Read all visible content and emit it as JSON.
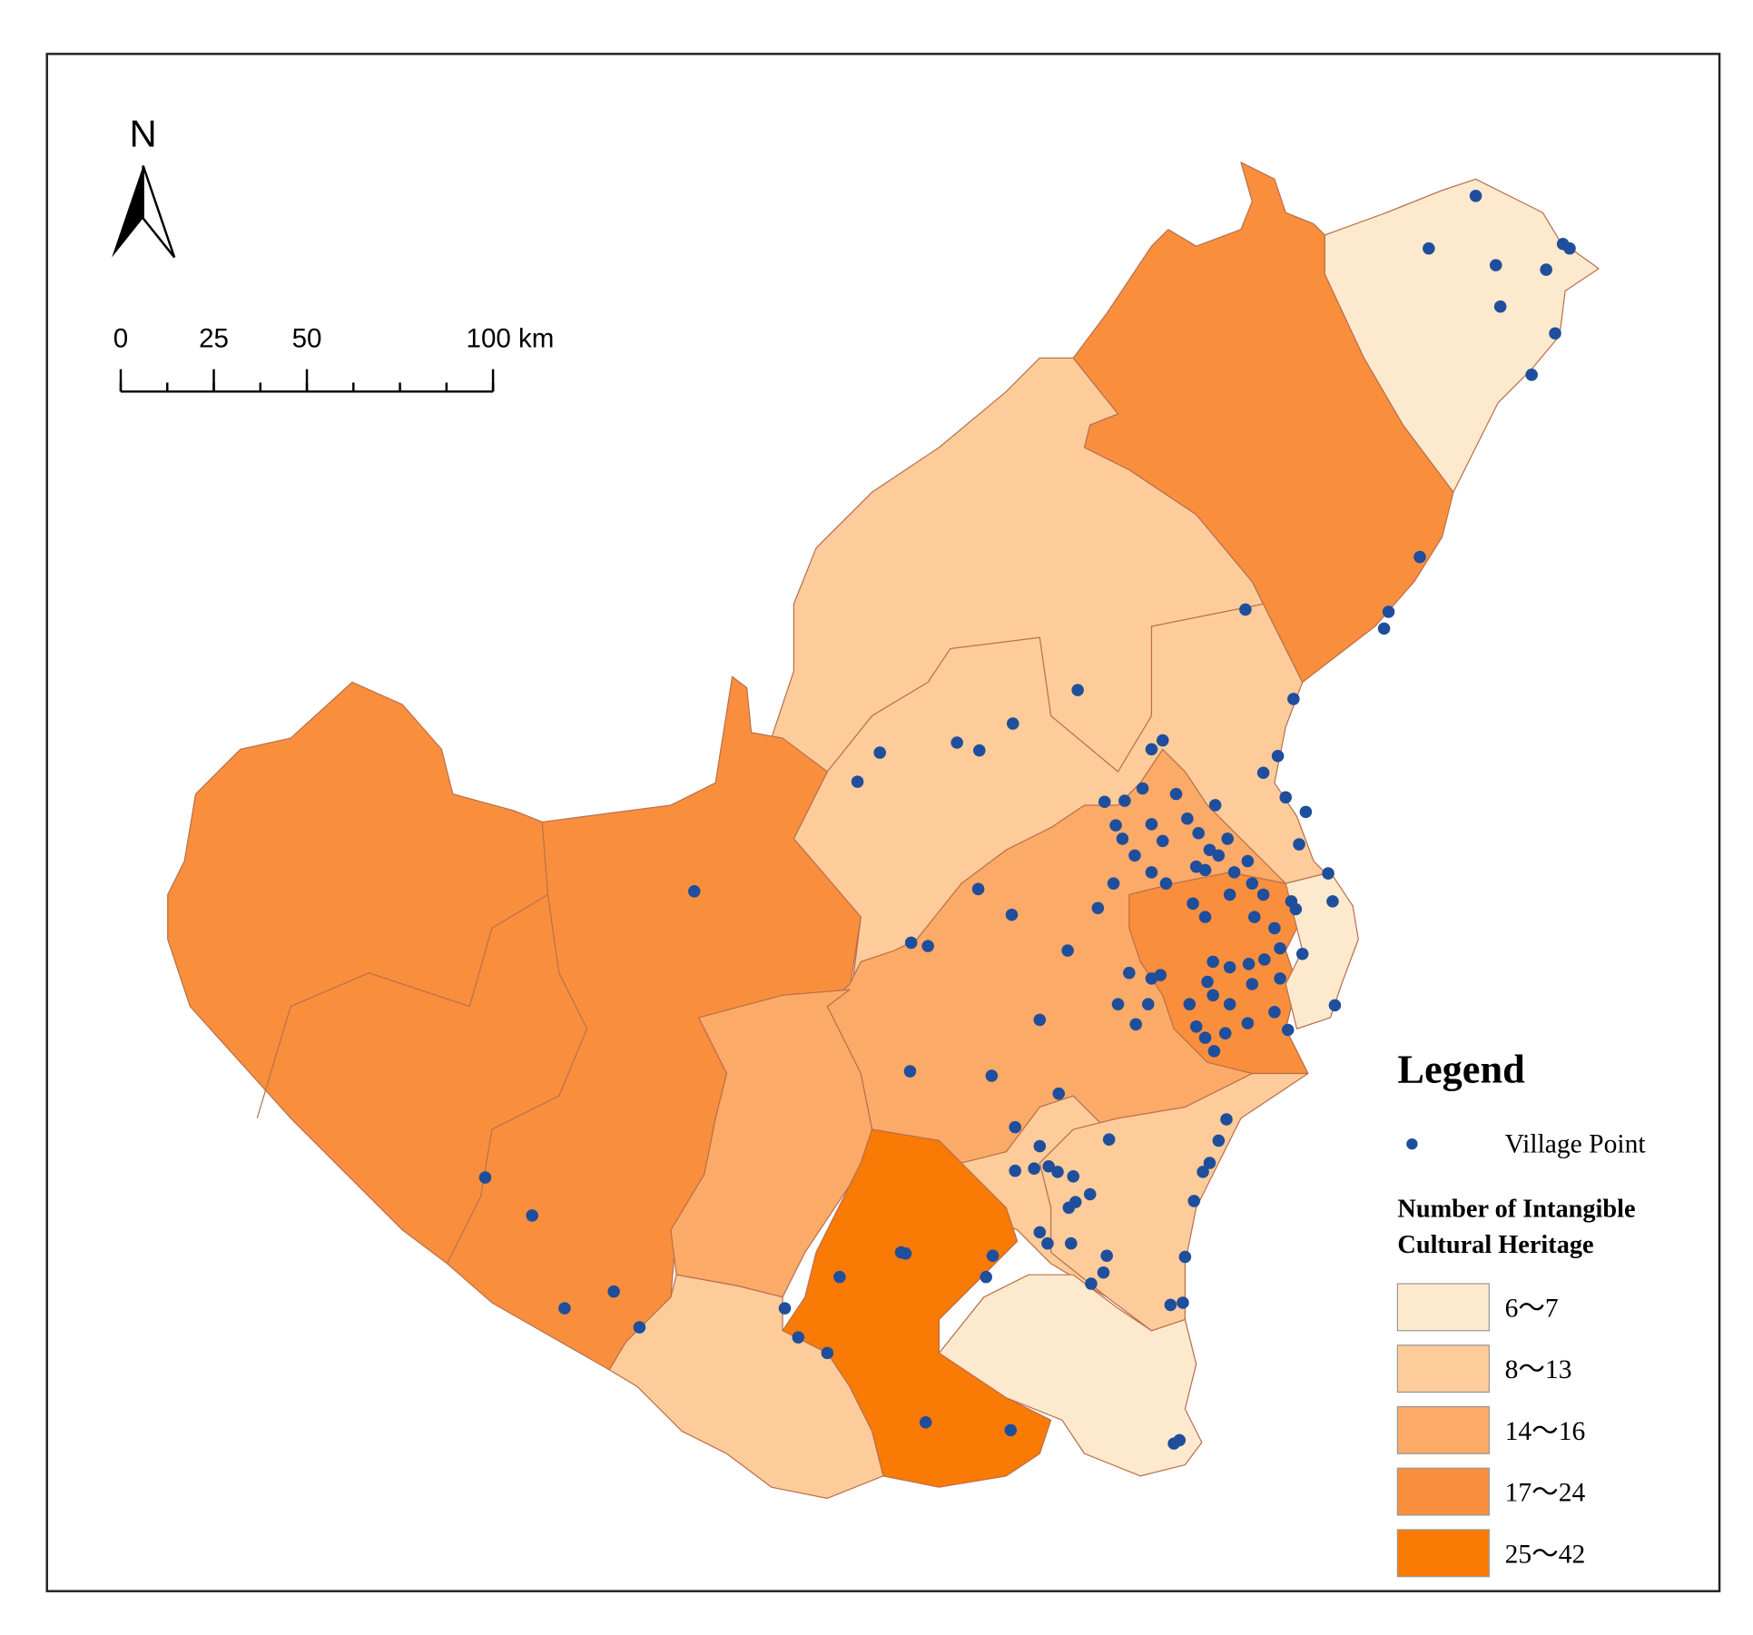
{
  "north_arrow": {
    "label": "N"
  },
  "scale_bar": {
    "ticks": [
      0,
      25,
      50,
      {
        "value": 100,
        "label": "100 km"
      }
    ]
  },
  "legend": {
    "title": "Legend",
    "point_label": "Village Point",
    "heading": [
      "Number of Intangible",
      "Cultural Heritage"
    ],
    "classes": [
      {
        "label": "6～7",
        "color": "#fde9cd"
      },
      {
        "label": "8～13",
        "color": "#fdcc9a"
      },
      {
        "label": "14～16",
        "color": "#fcaa68"
      },
      {
        "label": "17～24",
        "color": "#f98f3d"
      },
      {
        "label": "25～42",
        "color": "#f97a05"
      }
    ]
  }
}
